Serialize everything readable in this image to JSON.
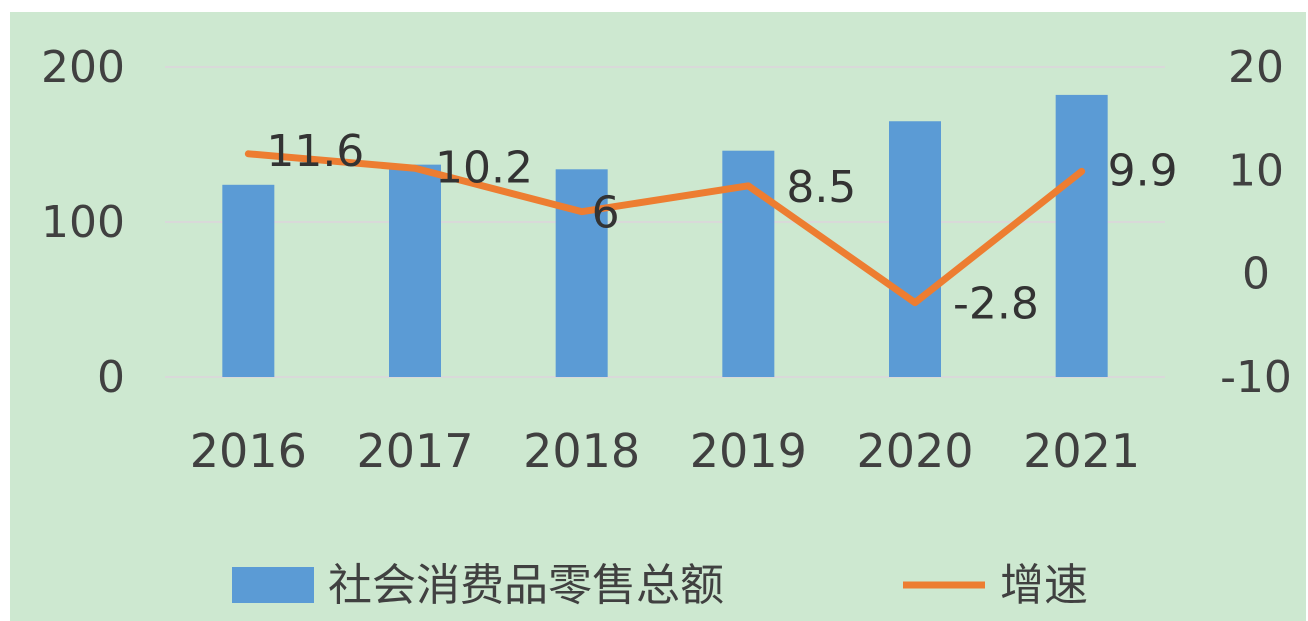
{
  "chart_data": {
    "type": "bar+line",
    "categories": [
      "2016",
      "2017",
      "2018",
      "2019",
      "2020",
      "2021"
    ],
    "series": [
      {
        "name": "社会消费品零售总额",
        "type": "bar",
        "axis": "left",
        "color": "#5b9bd5",
        "values": [
          124,
          137,
          134,
          146,
          165,
          182
        ]
      },
      {
        "name": "增速",
        "type": "line",
        "axis": "right",
        "color": "#ed7d31",
        "values": [
          11.6,
          10.2,
          6,
          8.5,
          -2.8,
          9.9
        ],
        "data_labels": [
          "11.6",
          "10.2",
          "6",
          "8.5",
          "-2.8",
          "9.9"
        ]
      }
    ],
    "left_axis": {
      "ylim": [
        0,
        200
      ],
      "ticks": [
        "0",
        "100",
        "200"
      ]
    },
    "right_axis": {
      "ylim": [
        -10,
        20
      ],
      "ticks": [
        "-10",
        "0",
        "10",
        "20"
      ]
    },
    "grid": true,
    "legend": "bottom",
    "title": "",
    "xlabel": "",
    "ylabel": ""
  }
}
